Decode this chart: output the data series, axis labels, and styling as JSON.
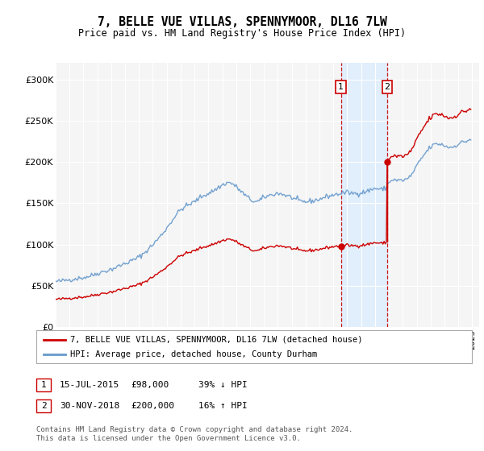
{
  "title": "7, BELLE VUE VILLAS, SPENNYMOOR, DL16 7LW",
  "subtitle": "Price paid vs. HM Land Registry's House Price Index (HPI)",
  "legend_line1": "7, BELLE VUE VILLAS, SPENNYMOOR, DL16 7LW (detached house)",
  "legend_line2": "HPI: Average price, detached house, County Durham",
  "transaction1_date": "15-JUL-2015",
  "transaction1_price": 98000,
  "transaction1_label": "39% ↓ HPI",
  "transaction2_date": "30-NOV-2018",
  "transaction2_price": 200000,
  "transaction2_label": "16% ↑ HPI",
  "footer": "Contains HM Land Registry data © Crown copyright and database right 2024.\nThis data is licensed under the Open Government Licence v3.0.",
  "hpi_color": "#6699cc",
  "property_color": "#cc0000",
  "background_color": "#ffffff",
  "ylim": [
    0,
    320000
  ],
  "yticks": [
    0,
    50000,
    100000,
    150000,
    200000,
    250000,
    300000
  ],
  "ytick_labels": [
    "£0",
    "£50K",
    "£100K",
    "£150K",
    "£200K",
    "£250K",
    "£300K"
  ],
  "hpi_key_points": [
    [
      1995.0,
      55000
    ],
    [
      1995.5,
      56000
    ],
    [
      1996.0,
      57500
    ],
    [
      1997.0,
      60000
    ],
    [
      1997.5,
      62000
    ],
    [
      1998.0,
      65000
    ],
    [
      1999.0,
      70000
    ],
    [
      2000.0,
      77000
    ],
    [
      2001.0,
      85000
    ],
    [
      2002.0,
      100000
    ],
    [
      2003.0,
      120000
    ],
    [
      2004.0,
      142000
    ],
    [
      2005.0,
      152000
    ],
    [
      2005.5,
      158000
    ],
    [
      2006.0,
      162000
    ],
    [
      2007.0,
      172000
    ],
    [
      2007.5,
      175000
    ],
    [
      2008.0,
      170000
    ],
    [
      2008.5,
      162000
    ],
    [
      2009.0,
      155000
    ],
    [
      2009.5,
      152000
    ],
    [
      2010.0,
      157000
    ],
    [
      2010.5,
      160000
    ],
    [
      2011.0,
      162000
    ],
    [
      2011.5,
      160000
    ],
    [
      2012.0,
      157000
    ],
    [
      2012.5,
      153000
    ],
    [
      2013.0,
      152000
    ],
    [
      2013.5,
      153000
    ],
    [
      2014.0,
      155000
    ],
    [
      2014.5,
      158000
    ],
    [
      2015.0,
      160000
    ],
    [
      2015.54,
      162000
    ],
    [
      2016.0,
      163000
    ],
    [
      2016.5,
      162000
    ],
    [
      2017.0,
      163000
    ],
    [
      2017.5,
      165000
    ],
    [
      2018.0,
      168000
    ],
    [
      2018.9,
      172000
    ],
    [
      2019.0,
      175000
    ],
    [
      2019.5,
      178000
    ],
    [
      2020.0,
      178000
    ],
    [
      2020.5,
      182000
    ],
    [
      2021.0,
      195000
    ],
    [
      2021.5,
      208000
    ],
    [
      2022.0,
      218000
    ],
    [
      2022.5,
      222000
    ],
    [
      2023.0,
      220000
    ],
    [
      2023.5,
      218000
    ],
    [
      2024.0,
      222000
    ],
    [
      2024.5,
      225000
    ],
    [
      2024.9,
      228000
    ]
  ]
}
